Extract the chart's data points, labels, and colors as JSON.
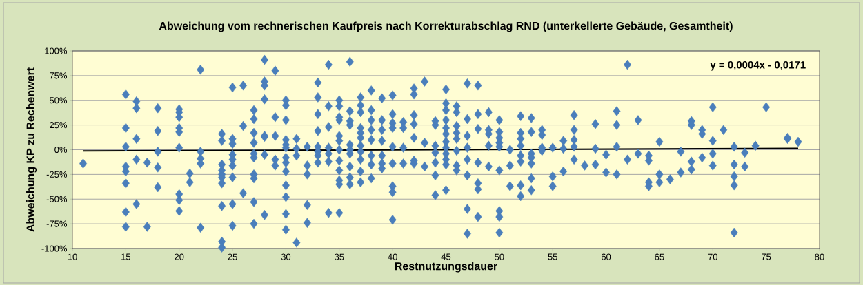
{
  "chart_data": {
    "type": "scatter",
    "title": "Abweichung vom rechnerischen Kaufpreis nach Korrekturabschlag RND (unterkellerte Gebäude, Gesamtheit)",
    "xlabel": "Restnutzungsdauer",
    "ylabel": "Abweichung KP zu Rechenwert",
    "xlim": [
      10,
      80
    ],
    "xticks": [
      10,
      15,
      20,
      25,
      30,
      35,
      40,
      45,
      50,
      55,
      60,
      65,
      70,
      75,
      80
    ],
    "ylim": [
      -100,
      100
    ],
    "yticks": [
      {
        "value": -100,
        "label": "-100%"
      },
      {
        "value": -75,
        "label": "-75%"
      },
      {
        "value": -50,
        "label": "-50%"
      },
      {
        "value": -25,
        "label": "-25%"
      },
      {
        "value": 0,
        "label": "0%"
      },
      {
        "value": 25,
        "label": "25%"
      },
      {
        "value": 50,
        "label": "50%"
      },
      {
        "value": 75,
        "label": "75%"
      },
      {
        "value": 100,
        "label": "100%"
      }
    ],
    "grid": "y",
    "marker": "diamond",
    "annotations": [
      "y = 0,0004x - 0,0171"
    ],
    "series": [
      {
        "color": "#4a7ebb",
        "x": [
          11,
          15,
          15,
          15,
          15,
          15,
          15,
          15,
          15,
          16,
          16,
          16,
          16,
          16,
          17,
          17,
          18,
          18,
          18,
          18,
          18,
          20,
          20,
          20,
          20,
          20,
          20,
          20,
          20,
          20,
          21,
          21,
          22,
          22,
          22,
          22,
          22,
          24,
          24,
          24,
          24,
          24,
          24,
          24,
          24,
          24,
          24,
          25,
          25,
          25,
          25,
          25,
          25,
          25,
          25,
          25,
          26,
          26,
          26,
          27,
          27,
          27,
          27,
          27,
          27,
          27,
          27,
          27,
          27,
          28,
          28,
          28,
          28,
          28,
          28,
          28,
          28,
          29,
          29,
          29,
          29,
          29,
          30,
          30,
          30,
          30,
          30,
          30,
          30,
          30,
          30,
          30,
          30,
          30,
          30,
          31,
          31,
          31,
          31,
          32,
          32,
          32,
          32,
          32,
          33,
          33,
          33,
          33,
          33,
          33,
          33,
          33,
          34,
          34,
          34,
          34,
          34,
          34,
          34,
          35,
          35,
          35,
          35,
          35,
          35,
          35,
          35,
          35,
          35,
          35,
          35,
          36,
          36,
          36,
          36,
          36,
          36,
          36,
          36,
          36,
          36,
          37,
          37,
          37,
          37,
          37,
          37,
          37,
          37,
          37,
          37,
          37,
          38,
          38,
          38,
          38,
          38,
          38,
          38,
          38,
          39,
          39,
          39,
          39,
          39,
          39,
          39,
          40,
          40,
          40,
          40,
          40,
          40,
          40,
          40,
          40,
          41,
          41,
          41,
          41,
          42,
          42,
          42,
          42,
          42,
          42,
          42,
          43,
          43,
          43,
          44,
          44,
          44,
          44,
          44,
          44,
          44,
          45,
          45,
          45,
          45,
          45,
          45,
          45,
          45,
          45,
          45,
          45,
          45,
          46,
          46,
          46,
          46,
          46,
          46,
          46,
          46,
          47,
          47,
          47,
          47,
          47,
          47,
          47,
          47,
          48,
          48,
          48,
          48,
          48,
          48,
          48,
          49,
          49,
          49,
          49,
          49,
          50,
          50,
          50,
          50,
          50,
          50,
          50,
          50,
          50,
          51,
          51,
          51,
          52,
          52,
          52,
          52,
          52,
          52,
          52,
          52,
          53,
          53,
          53,
          53,
          53,
          53,
          53,
          54,
          54,
          54,
          54,
          55,
          55,
          55,
          56,
          56,
          56,
          57,
          57,
          57,
          57,
          57,
          58,
          59,
          59,
          59,
          60,
          60,
          61,
          61,
          61,
          61,
          62,
          62,
          63,
          63,
          64,
          64,
          64,
          64,
          65,
          65,
          65,
          66,
          67,
          67,
          68,
          68,
          68,
          68,
          69,
          69,
          69,
          70,
          70,
          70,
          70,
          71,
          72,
          72,
          72,
          72,
          72,
          73,
          73,
          74,
          75,
          77,
          77,
          78
        ],
        "values": [
          -14,
          56,
          22,
          3,
          -17,
          -22,
          -34,
          -63,
          -78,
          49,
          42,
          11,
          -10,
          -55,
          -13,
          -78,
          42,
          19,
          -2,
          -18,
          -38,
          41,
          38,
          33,
          22,
          18,
          2,
          -45,
          -51,
          -62,
          -24,
          -33,
          81,
          -2,
          -9,
          -14,
          -79,
          16,
          9,
          -15,
          -21,
          -25,
          -28,
          -34,
          -57,
          -93,
          -99,
          63,
          11,
          6,
          -5,
          -10,
          -16,
          -28,
          -55,
          -77,
          65,
          24,
          -44,
          40,
          31,
          17,
          7,
          -4,
          -8,
          -25,
          -29,
          -53,
          -75,
          91,
          69,
          65,
          51,
          14,
          13,
          -5,
          -66,
          80,
          33,
          14,
          -10,
          -16,
          50,
          45,
          30,
          10,
          5,
          2,
          -8,
          -13,
          -22,
          -36,
          -48,
          -65,
          -81,
          11,
          1,
          -6,
          -94,
          3,
          -16,
          -25,
          -56,
          -74,
          68,
          53,
          36,
          19,
          3,
          -2,
          -6,
          -13,
          86,
          44,
          23,
          2,
          -4,
          -12,
          -64,
          50,
          44,
          33,
          30,
          14,
          9,
          0,
          -11,
          -21,
          -31,
          -35,
          -64,
          89,
          39,
          29,
          25,
          5,
          0,
          -4,
          -17,
          -28,
          -35,
          53,
          45,
          38,
          22,
          17,
          12,
          4,
          -2,
          -10,
          -22,
          -33,
          60,
          40,
          30,
          20,
          10,
          -6,
          -15,
          -29,
          52,
          30,
          20,
          9,
          -6,
          -14,
          -19,
          55,
          36,
          27,
          22,
          3,
          -14,
          -37,
          -43,
          -71,
          28,
          22,
          2,
          -14,
          62,
          56,
          35,
          26,
          12,
          -11,
          -14,
          69,
          7,
          -17,
          29,
          25,
          4,
          -3,
          -13,
          -26,
          -46,
          61,
          47,
          40,
          30,
          22,
          16,
          8,
          2,
          -4,
          -10,
          -15,
          -41,
          44,
          38,
          24,
          17,
          11,
          -1,
          -16,
          -21,
          67,
          31,
          14,
          2,
          -10,
          -26,
          -60,
          -85,
          65,
          36,
          21,
          -13,
          -34,
          -40,
          -68,
          38,
          20,
          16,
          4,
          -17,
          30,
          18,
          12,
          7,
          3,
          -21,
          -62,
          -68,
          -84,
          0,
          -16,
          -37,
          34,
          17,
          11,
          4,
          -6,
          -12,
          -36,
          -47,
          32,
          18,
          -4,
          -8,
          -14,
          -29,
          -41,
          20,
          15,
          2,
          -1,
          2,
          -27,
          -37,
          9,
          1,
          -22,
          35,
          20,
          10,
          3,
          -10,
          -16,
          26,
          1,
          -15,
          -5,
          -23,
          39,
          25,
          3,
          -25,
          86,
          -10,
          30,
          -4,
          -6,
          -11,
          -33,
          -37,
          8,
          -25,
          -33,
          -30,
          -2,
          -23,
          29,
          25,
          -12,
          -20,
          20,
          16,
          -8,
          43,
          9,
          -4,
          -16,
          20,
          3,
          -15,
          -27,
          -36,
          -84,
          -3,
          -17,
          4,
          43,
          11,
          12,
          8
        ]
      },
      {
        "type": "line",
        "marker": "none",
        "color": "#000000",
        "x": [
          11,
          78
        ],
        "values": [
          -1.3,
          1.4
        ]
      }
    ]
  }
}
